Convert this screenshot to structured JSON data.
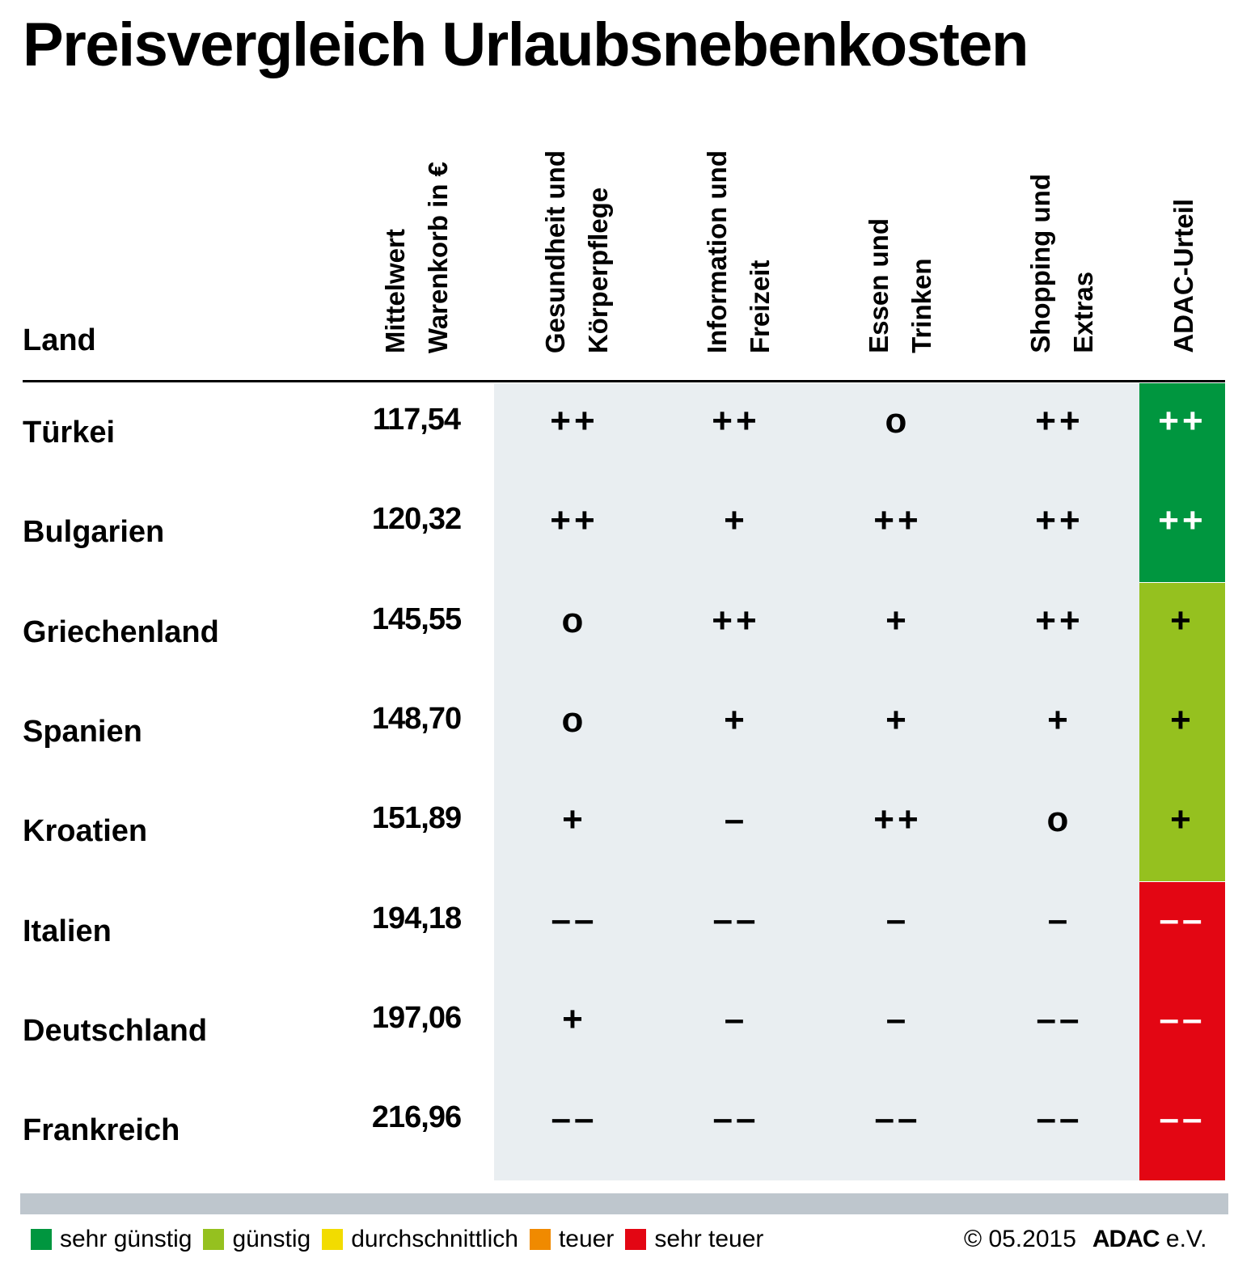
{
  "title": "Preisvergleich Urlaubsnebenkosten",
  "chart_data": {
    "type": "table",
    "title": "Preisvergleich Urlaubsnebenkosten",
    "columns": [
      "Land",
      "Mittelwert Warenkorb in €",
      "Gesundheit und Körperpflege",
      "Information und Freizeit",
      "Essen und Trinken",
      "Shopping und Extras",
      "ADAC-Urteil"
    ],
    "header_lines": [
      [
        "Mittelwert",
        "Warenkorb in €"
      ],
      [
        "Gesundheit und",
        "Körperpflege"
      ],
      [
        "Information und",
        "Freizeit"
      ],
      [
        "Essen und",
        "Trinken"
      ],
      [
        "Shopping und",
        "Extras"
      ],
      [
        "ADAC-Urteil"
      ]
    ],
    "rows": [
      {
        "land": "Türkei",
        "wert": "117,54",
        "ratings": [
          "++",
          "++",
          "o",
          "++"
        ],
        "urteil": "++",
        "urteil_color": "#00963f",
        "urteil_text": "#ffffff"
      },
      {
        "land": "Bulgarien",
        "wert": "120,32",
        "ratings": [
          "++",
          "+",
          "++",
          "++"
        ],
        "urteil": "++",
        "urteil_color": "#00963f",
        "urteil_text": "#ffffff"
      },
      {
        "land": "Griechenland",
        "wert": "145,55",
        "ratings": [
          "o",
          "++",
          "+",
          "++"
        ],
        "urteil": "+",
        "urteil_color": "#95c11f",
        "urteil_text": "#000000"
      },
      {
        "land": "Spanien",
        "wert": "148,70",
        "ratings": [
          "o",
          "+",
          "+",
          "+"
        ],
        "urteil": "+",
        "urteil_color": "#95c11f",
        "urteil_text": "#000000"
      },
      {
        "land": "Kroatien",
        "wert": "151,89",
        "ratings": [
          "+",
          "–",
          "++",
          "o"
        ],
        "urteil": "+",
        "urteil_color": "#95c11f",
        "urteil_text": "#000000"
      },
      {
        "land": "Italien",
        "wert": "194,18",
        "ratings": [
          "––",
          "––",
          "–",
          "–"
        ],
        "urteil": "––",
        "urteil_color": "#e30613",
        "urteil_text": "#ffffff"
      },
      {
        "land": "Deutschland",
        "wert": "197,06",
        "ratings": [
          "+",
          "–",
          "–",
          "––"
        ],
        "urteil": "––",
        "urteil_color": "#e30613",
        "urteil_text": "#ffffff"
      },
      {
        "land": "Frankreich",
        "wert": "216,96",
        "ratings": [
          "––",
          "––",
          "––",
          "––"
        ],
        "urteil": "––",
        "urteil_color": "#e30613",
        "urteil_text": "#ffffff"
      }
    ]
  },
  "legend": [
    {
      "label": "sehr günstig",
      "color": "#00963f"
    },
    {
      "label": "günstig",
      "color": "#95c11f"
    },
    {
      "label": "durchschnittlich",
      "color": "#f2dc00"
    },
    {
      "label": "teuer",
      "color": "#f08a00"
    },
    {
      "label": "sehr teuer",
      "color": "#e30613"
    }
  ],
  "footer": {
    "copyright": "© 05.2015",
    "brand": "ADAC",
    "brand_suffix": "e.V."
  }
}
